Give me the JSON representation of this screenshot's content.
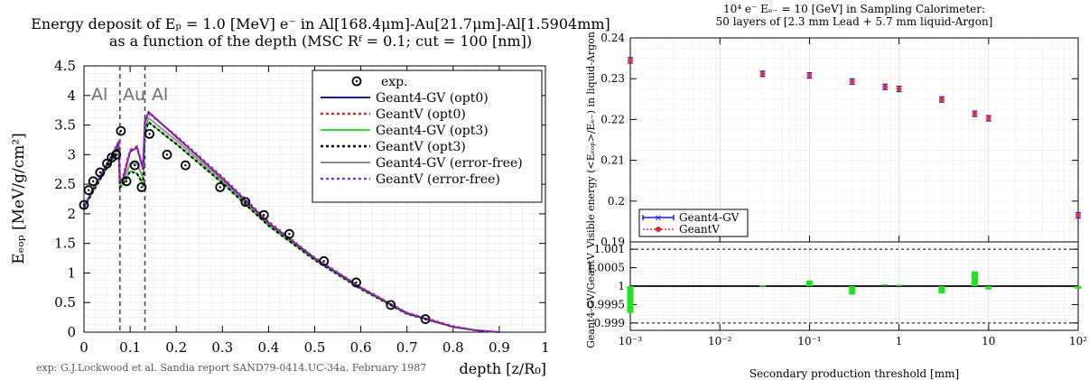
{
  "left": {
    "title": [
      "Energy deposit of Eₚ = 1.0 [MeV] e⁻ in Al[168.4μm]-Au[21.7μm]-Al[1.5904mm]",
      "as a function of the depth (MSC Rᶠ = 0.1; cut = 100 [nm])"
    ],
    "ylabel": "Eₑₒₚ [MeV/g/cm²]",
    "xlabel": "depth [z/R₀]",
    "footnote": "exp: G.J.Lockwood et al. Sandia report SAND79-0414.UC-34a, February 1987",
    "region_labels": [
      "Al",
      "Au",
      "Al"
    ],
    "legend": [
      "exp.",
      "Geant4-GV (opt0)",
      "GeantV (opt0)",
      "Geant4-GV (opt3)",
      "GeantV (opt3)",
      "Geant4-GV (error-free)",
      "GeantV (error-free)"
    ],
    "colors": [
      "#1a1aa8",
      "#e8202a",
      "#2ee02e",
      "#000000",
      "#8a8a8a",
      "#8a2be2"
    ]
  },
  "right": {
    "title": [
      "10⁴ e⁻ Eₑ₋ = 10 [GeV] in Sampling Calorimeter:",
      "50 layers of [2.3 mm Lead + 5.7 mm liquid-Argon]"
    ],
    "ylabel_top": "Visible energy (<Eₑₒₚ>/Eₑ₋) in liquid-Argon",
    "ylabel_bottom": "Geant4-GV/GeantV",
    "xlabel": "Secondary production threshold [mm]",
    "legend": [
      "Geant4-GV",
      "GeantV"
    ],
    "colors": {
      "g4": "#1a1ae0",
      "gv": "#e0203a",
      "ratio": "#22e022"
    }
  },
  "chart_data": [
    {
      "type": "line",
      "title": "Energy deposit of Ep = 1.0 [MeV] e- in Al[168.4μm]-Au[21.7μm]-Al[1.5904mm] as a function of the depth (MSC Rf = 0.1; cut = 100 [nm])",
      "xlabel": "depth [z/R0]",
      "ylabel": "Edep [MeV/g/cm2]",
      "xlim": [
        0,
        1
      ],
      "ylim": [
        0,
        4.5
      ],
      "xticks": [
        0,
        0.1,
        0.2,
        0.3,
        0.4,
        0.5,
        0.6,
        0.7,
        0.8,
        0.9,
        1
      ],
      "yticks": [
        0,
        0.5,
        1,
        1.5,
        2,
        2.5,
        3,
        3.5,
        4,
        4.5
      ],
      "boundaries": [
        0.078,
        0.132
      ],
      "grid": true,
      "legend_position": "top-right",
      "series": [
        {
          "name": "exp.",
          "kind": "markers",
          "x": [
            0.0,
            0.01,
            0.02,
            0.035,
            0.05,
            0.06,
            0.07,
            0.08,
            0.092,
            0.11,
            0.125,
            0.142,
            0.18,
            0.22,
            0.295,
            0.35,
            0.39,
            0.445,
            0.52,
            0.59,
            0.665,
            0.74
          ],
          "y": [
            2.15,
            2.4,
            2.55,
            2.7,
            2.85,
            2.95,
            3.0,
            3.4,
            2.55,
            2.82,
            2.45,
            3.35,
            3.0,
            2.82,
            2.45,
            2.2,
            1.98,
            1.66,
            1.2,
            0.84,
            0.46,
            0.22
          ]
        },
        {
          "name": "Geant4-GV (opt0)",
          "x": [
            0,
            0.02,
            0.04,
            0.06,
            0.075,
            0.078,
            0.085,
            0.1,
            0.115,
            0.128,
            0.132,
            0.14,
            0.2,
            0.3,
            0.4,
            0.5,
            0.6,
            0.7,
            0.8,
            0.85,
            0.9
          ],
          "y": [
            2.12,
            2.42,
            2.7,
            2.98,
            3.2,
            2.55,
            2.6,
            3.05,
            3.12,
            2.75,
            3.55,
            3.72,
            3.3,
            2.6,
            1.85,
            1.25,
            0.75,
            0.32,
            0.09,
            0.03,
            0.0
          ]
        },
        {
          "name": "GeantV (opt0)",
          "x": [
            0,
            0.02,
            0.04,
            0.06,
            0.075,
            0.078,
            0.085,
            0.1,
            0.115,
            0.128,
            0.132,
            0.14,
            0.2,
            0.3,
            0.4,
            0.5,
            0.6,
            0.7,
            0.8,
            0.85,
            0.9
          ],
          "y": [
            2.12,
            2.42,
            2.7,
            2.98,
            3.2,
            2.55,
            2.6,
            3.05,
            3.12,
            2.75,
            3.55,
            3.72,
            3.3,
            2.6,
            1.85,
            1.25,
            0.75,
            0.32,
            0.09,
            0.03,
            0.0
          ]
        },
        {
          "name": "Geant4-GV (opt3)",
          "x": [
            0,
            0.02,
            0.04,
            0.06,
            0.075,
            0.078,
            0.085,
            0.1,
            0.115,
            0.128,
            0.132,
            0.14,
            0.2,
            0.3,
            0.4,
            0.5,
            0.6,
            0.7,
            0.8,
            0.85,
            0.9
          ],
          "y": [
            2.1,
            2.38,
            2.65,
            2.92,
            3.12,
            2.45,
            2.5,
            2.72,
            2.68,
            2.5,
            3.38,
            3.55,
            3.18,
            2.52,
            1.8,
            1.22,
            0.73,
            0.31,
            0.09,
            0.03,
            0.0
          ]
        },
        {
          "name": "GeantV (opt3)",
          "x": [
            0,
            0.02,
            0.04,
            0.06,
            0.075,
            0.078,
            0.085,
            0.1,
            0.115,
            0.128,
            0.132,
            0.14,
            0.2,
            0.3,
            0.4,
            0.5,
            0.6,
            0.7,
            0.8,
            0.85,
            0.9
          ],
          "y": [
            2.1,
            2.38,
            2.65,
            2.92,
            3.12,
            2.45,
            2.5,
            2.72,
            2.68,
            2.5,
            3.38,
            3.55,
            3.18,
            2.52,
            1.8,
            1.22,
            0.73,
            0.31,
            0.09,
            0.03,
            0.0
          ]
        },
        {
          "name": "Geant4-GV (error-free)",
          "x": [
            0,
            0.02,
            0.04,
            0.06,
            0.075,
            0.078,
            0.085,
            0.1,
            0.115,
            0.128,
            0.132,
            0.14,
            0.2,
            0.3,
            0.4,
            0.5,
            0.6,
            0.7,
            0.8,
            0.85,
            0.9
          ],
          "y": [
            2.11,
            2.4,
            2.67,
            2.94,
            3.15,
            2.5,
            2.55,
            2.85,
            2.85,
            2.6,
            3.45,
            3.62,
            3.24,
            2.56,
            1.83,
            1.24,
            0.74,
            0.32,
            0.09,
            0.03,
            0.0
          ]
        },
        {
          "name": "GeantV (error-free)",
          "x": [
            0,
            0.02,
            0.04,
            0.06,
            0.075,
            0.078,
            0.085,
            0.1,
            0.115,
            0.128,
            0.132,
            0.14,
            0.2,
            0.3,
            0.4,
            0.5,
            0.6,
            0.7,
            0.8,
            0.85,
            0.9
          ],
          "y": [
            2.13,
            2.43,
            2.71,
            2.99,
            3.22,
            2.6,
            2.64,
            3.08,
            3.14,
            2.78,
            3.58,
            3.7,
            3.32,
            2.62,
            1.87,
            1.26,
            0.76,
            0.33,
            0.1,
            0.03,
            0.0
          ]
        }
      ]
    },
    {
      "type": "scatter",
      "title": "10^4 e- Ee- = 10 [GeV] in Sampling Calorimeter: 50 layers of [2.3 mm Lead + 5.7 mm liquid-Argon]",
      "xlabel": "Secondary production threshold [mm]",
      "ylabel": "Visible energy (<Edep>/Ee-) in liquid-Argon",
      "x_scale": "log",
      "xlim": [
        0.001,
        100
      ],
      "ylim": [
        0.19,
        0.24
      ],
      "yticks": [
        0.19,
        0.2,
        0.21,
        0.22,
        0.23,
        0.24
      ],
      "grid": true,
      "legend_position": "bottom-left",
      "x": [
        0.001,
        0.03,
        0.1,
        0.3,
        0.7,
        1,
        3,
        7,
        10,
        100
      ],
      "series": [
        {
          "name": "Geant4-GV",
          "values": [
            0.2345,
            0.2312,
            0.2308,
            0.2293,
            0.228,
            0.2275,
            0.2249,
            0.2214,
            0.2203,
            0.1965
          ]
        },
        {
          "name": "GeantV",
          "values": [
            0.2345,
            0.2312,
            0.2308,
            0.2293,
            0.228,
            0.2275,
            0.2249,
            0.2214,
            0.2203,
            0.1965
          ]
        }
      ]
    },
    {
      "type": "bar",
      "title": "",
      "xlabel": "Secondary production threshold [mm]",
      "ylabel": "Geant4-GV/GeantV",
      "x_scale": "log",
      "xlim": [
        0.001,
        100
      ],
      "ylim": [
        0.9988,
        1.0012
      ],
      "yticks": [
        0.999,
        0.9995,
        1,
        1.0005,
        1.001
      ],
      "yticklabels": [
        "0.999",
        "0.9995",
        "1",
        "1.0005",
        "1.001"
      ],
      "xticklabels": [
        "10⁻³",
        "10⁻²",
        "10⁻¹",
        "1",
        "10",
        "10²"
      ],
      "reference_lines": [
        0.999,
        1.0,
        1.001
      ],
      "x": [
        0.001,
        0.03,
        0.1,
        0.3,
        0.7,
        1,
        3,
        7,
        10,
        100
      ],
      "values": [
        0.99927,
        1.0,
        1.00015,
        0.99977,
        1.00003,
        1.00002,
        0.9998,
        1.0004,
        0.99991,
        0.99993
      ]
    }
  ]
}
